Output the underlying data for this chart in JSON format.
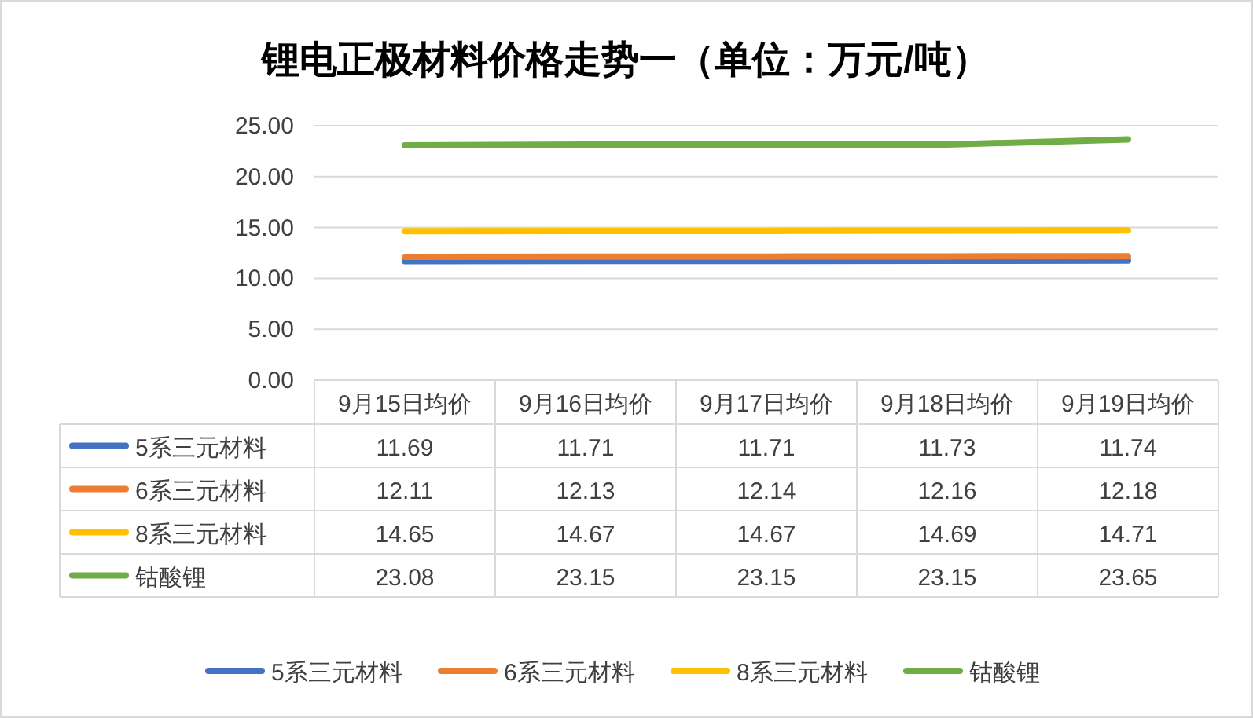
{
  "chart_data": {
    "type": "line",
    "title": "锂电正极材料价格走势一（单位：万元/吨）",
    "categories": [
      "9月15日均价",
      "9月16日均价",
      "9月17日均价",
      "9月18日均价",
      "9月19日均价"
    ],
    "series": [
      {
        "name": "5系三元材料",
        "color": "#4472c4",
        "values": [
          11.69,
          11.71,
          11.71,
          11.73,
          11.74
        ]
      },
      {
        "name": "6系三元材料",
        "color": "#ed7d31",
        "values": [
          12.11,
          12.13,
          12.14,
          12.16,
          12.18
        ]
      },
      {
        "name": "8系三元材料",
        "color": "#ffc000",
        "values": [
          14.65,
          14.67,
          14.67,
          14.69,
          14.71
        ]
      },
      {
        "name": "钴酸锂",
        "color": "#70ad47",
        "values": [
          23.08,
          23.15,
          23.15,
          23.15,
          23.65
        ]
      }
    ],
    "ylim": [
      0,
      25
    ],
    "yticks": [
      {
        "value": 0,
        "label": "0.00"
      },
      {
        "value": 5,
        "label": "5.00"
      },
      {
        "value": 10,
        "label": "10.00"
      },
      {
        "value": 15,
        "label": "15.00"
      },
      {
        "value": 20,
        "label": "20.00"
      },
      {
        "value": 25,
        "label": "25.00"
      }
    ],
    "grid": "y",
    "data_labels": true,
    "legend": "bottom"
  }
}
